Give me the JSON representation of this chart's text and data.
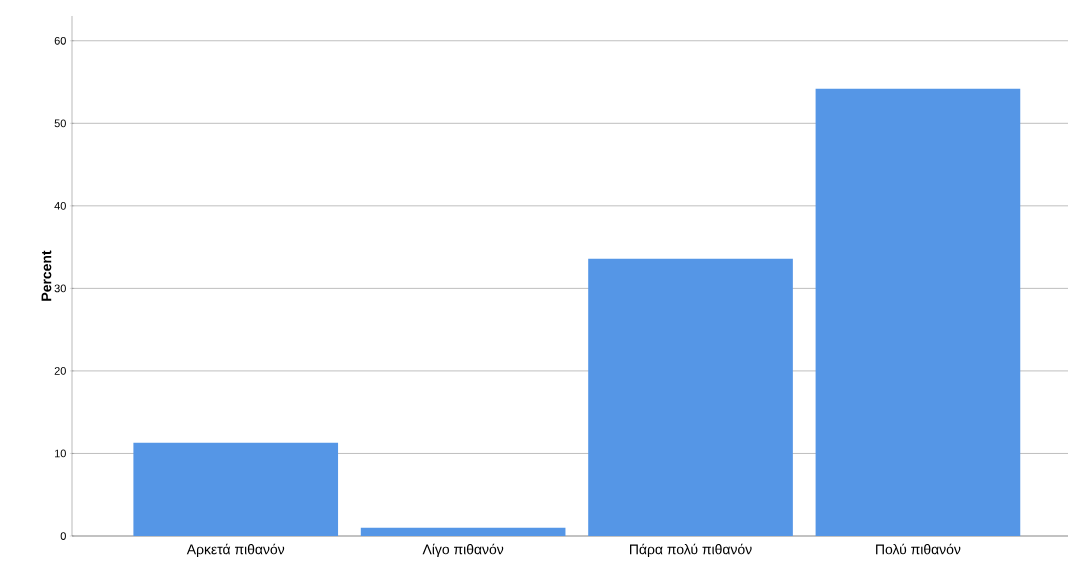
{
  "chart_data": {
    "type": "bar",
    "ylabel": "Percent",
    "categories": [
      "Αρκετά πιθανόν",
      "Λίγο πιθανόν",
      "Πάρα πολύ πιθανόν",
      "Πολύ πιθανόν"
    ],
    "values": [
      11.3,
      1.0,
      33.6,
      54.2
    ],
    "color": "#5596e6",
    "ylim": [
      0,
      63
    ],
    "yticks": [
      0,
      10,
      20,
      30,
      40,
      50,
      60
    ],
    "grid": "y"
  }
}
